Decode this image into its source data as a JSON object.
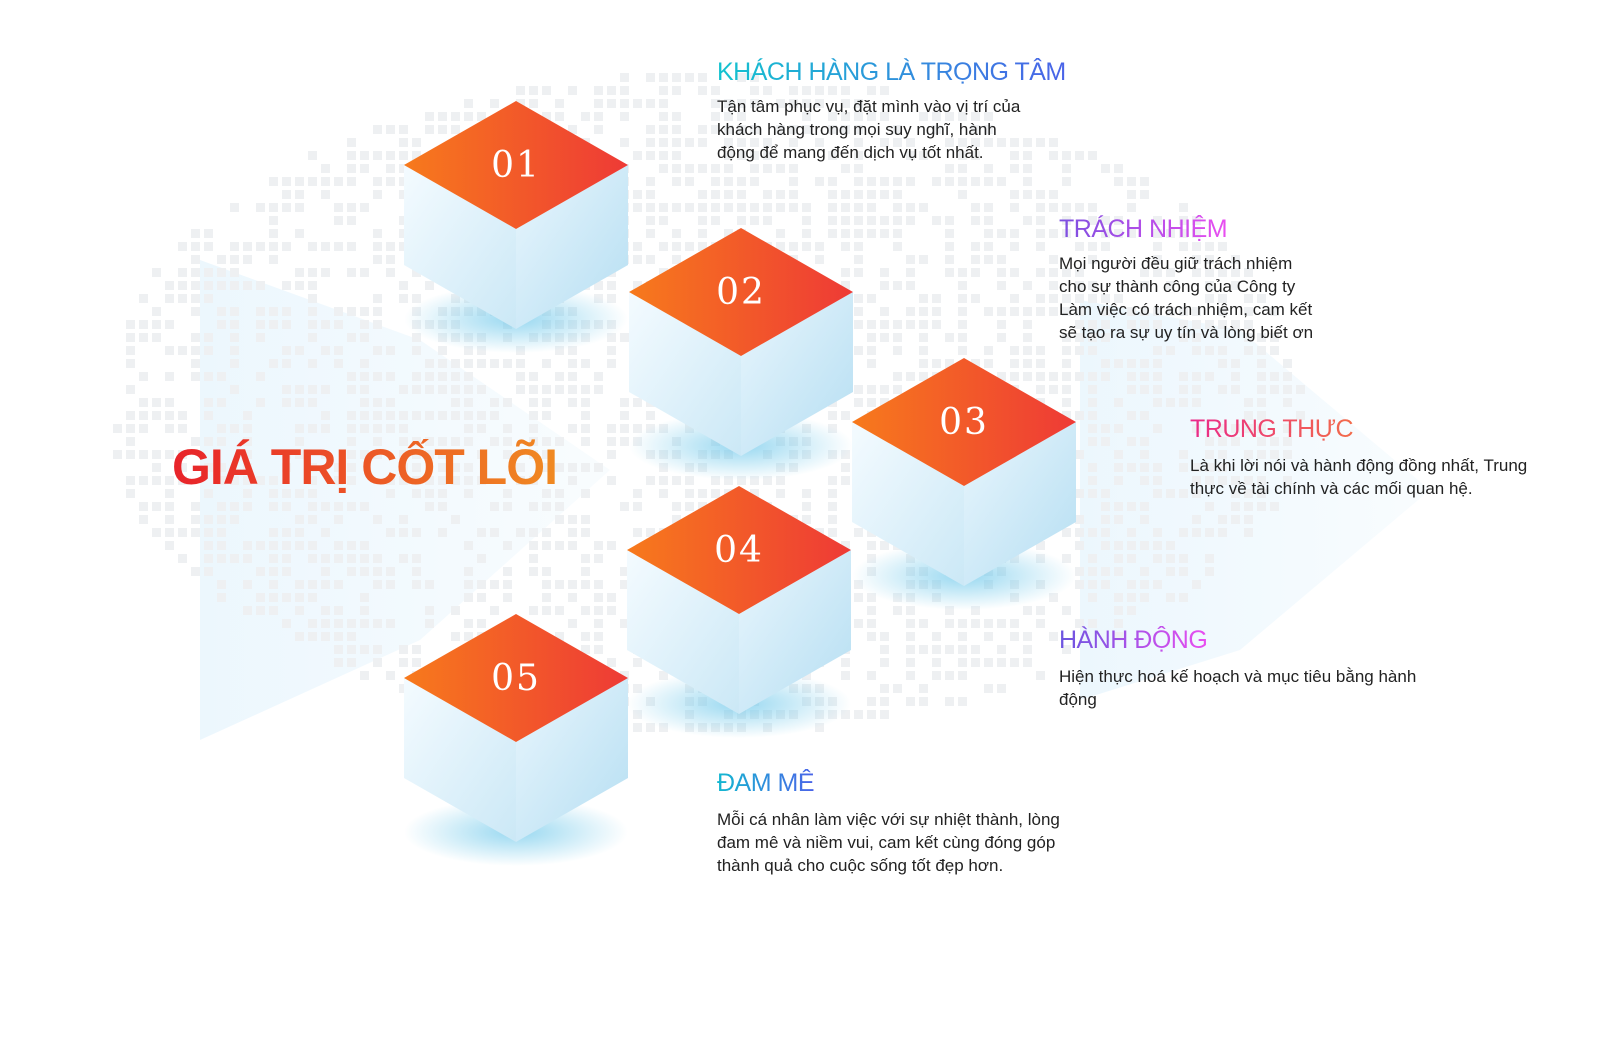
{
  "title": "GIÁ TRỊ CỐT LÕI",
  "colors": {
    "cube_top_start": "#f77a1c",
    "cube_top_end": "#ee3a36",
    "cube_side": "#cfeaf7",
    "title_start": "#e8232a",
    "title_end": "#f08a22"
  },
  "cubes": [
    "01",
    "02",
    "03",
    "04",
    "05"
  ],
  "values": [
    {
      "heading": "KHÁCH HÀNG LÀ TRỌNG TÂM",
      "lines": [
        "Tận tâm phục vụ, đặt mình vào vị trí của",
        "khách hàng trong mọi suy nghĩ, hành",
        "động để mang đến dịch vụ tốt nhất."
      ]
    },
    {
      "heading": "TRÁCH NHIỆM",
      "lines": [
        "Mọi người đều giữ trách nhiệm",
        "cho sự thành công của Công ty",
        "Làm việc có trách nhiệm, cam kết",
        "sẽ tạo ra sự uy tín và lòng biết ơn"
      ]
    },
    {
      "heading": "TRUNG THỰC",
      "lines": [
        "Là khi lời nói và hành động đồng nhất, Trung",
        "thực về tài chính và các mối quan hệ."
      ]
    },
    {
      "heading": "HÀNH ĐỘNG",
      "lines": [
        "Hiện thực hoá kế hoạch và mục tiêu bằng hành",
        "động"
      ]
    },
    {
      "heading": "ĐAM MÊ",
      "lines": [
        "Mỗi cá nhân làm việc với sự nhiệt thành, lòng",
        "đam mê và niềm vui, cam kết cùng đóng góp",
        "thành quả cho cuộc sống tốt đẹp hơn."
      ]
    }
  ]
}
